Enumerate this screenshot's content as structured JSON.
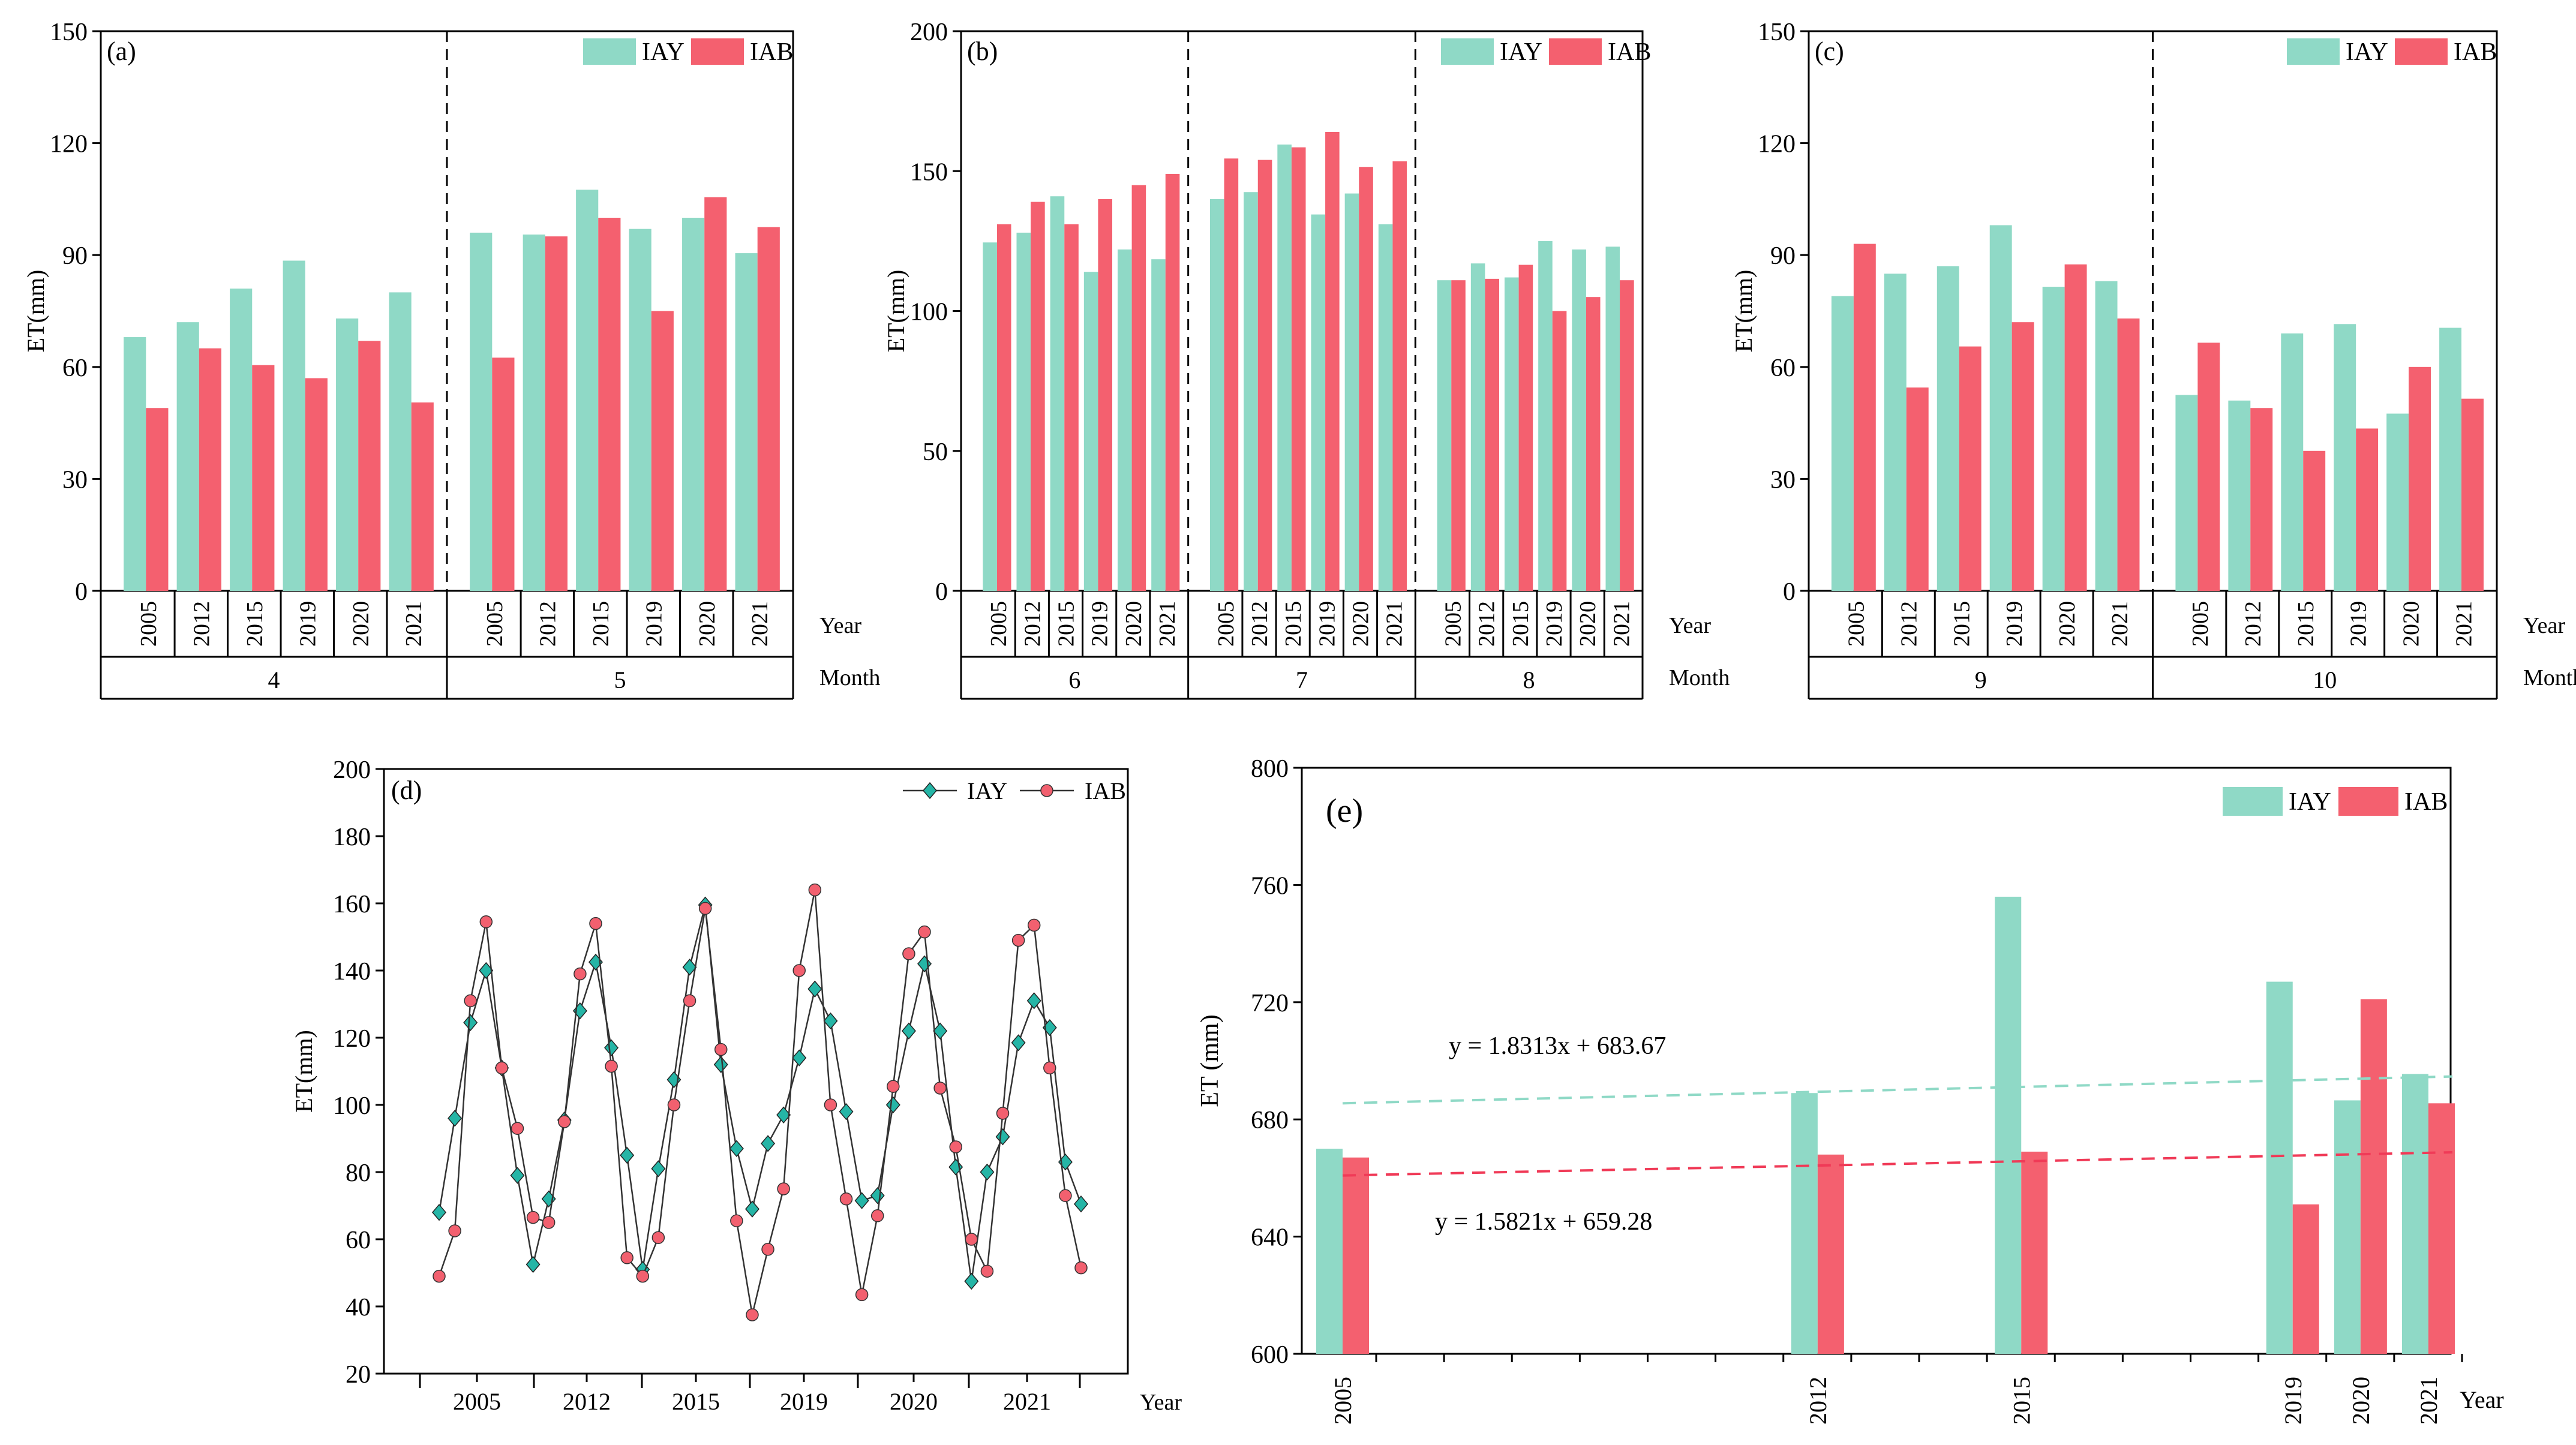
{
  "colors": {
    "iay": "#8fd9c6",
    "iab": "#f4606f",
    "iay_line": "#25b5a6",
    "iab_marker": "#f2606f",
    "axis": "#000000",
    "trend_iay": "#8fd9c6",
    "trend_iab": "#f03a57"
  },
  "common": {
    "years": [
      "2005",
      "2012",
      "2015",
      "2019",
      "2020",
      "2021"
    ],
    "year_label": "Year",
    "month_label": "Month",
    "legend_iay": "IAY",
    "legend_iab": "IAB"
  },
  "chart_data": [
    {
      "panel": "(a)",
      "type": "bar",
      "ylabel": "ET(mm)",
      "ylim": [
        0,
        150
      ],
      "yticks": [
        0,
        30,
        60,
        90,
        120,
        150
      ],
      "groups": [
        {
          "month": "4",
          "IAY": [
            68,
            72,
            81,
            88.5,
            73,
            80
          ],
          "IAB": [
            49,
            65,
            60.5,
            57,
            67,
            50.5
          ]
        },
        {
          "month": "5",
          "IAY": [
            96,
            95.5,
            107.5,
            97,
            100,
            90.5
          ],
          "IAB": [
            62.5,
            95,
            100,
            75,
            105.5,
            97.5
          ]
        }
      ]
    },
    {
      "panel": "(b)",
      "type": "bar",
      "ylabel": "ET(mm)",
      "ylim": [
        0,
        200
      ],
      "yticks": [
        0,
        50,
        100,
        150,
        200
      ],
      "groups": [
        {
          "month": "6",
          "IAY": [
            124.5,
            128,
            141,
            114,
            122,
            118.5
          ],
          "IAB": [
            131,
            139,
            131,
            140,
            145,
            149
          ]
        },
        {
          "month": "7",
          "IAY": [
            140,
            142.5,
            159.5,
            134.5,
            142,
            131
          ],
          "IAB": [
            154.5,
            154,
            158.5,
            164,
            151.5,
            153.5
          ]
        },
        {
          "month": "8",
          "IAY": [
            111,
            117,
            112,
            125,
            122,
            123
          ],
          "IAB": [
            111,
            111.5,
            116.5,
            100,
            105,
            111
          ]
        }
      ]
    },
    {
      "panel": "(c)",
      "type": "bar",
      "ylabel": "ET(mm)",
      "ylim": [
        0,
        150
      ],
      "yticks": [
        0,
        30,
        60,
        90,
        120,
        150
      ],
      "groups": [
        {
          "month": "9",
          "IAY": [
            79,
            85,
            87,
            98,
            81.5,
            83
          ],
          "IAB": [
            93,
            54.5,
            65.5,
            72,
            87.5,
            73
          ]
        },
        {
          "month": "10",
          "IAY": [
            52.5,
            51,
            69,
            71.5,
            47.5,
            70.5
          ],
          "IAB": [
            66.5,
            49,
            37.5,
            43.5,
            60,
            51.5
          ]
        }
      ]
    },
    {
      "panel": "(d)",
      "type": "line",
      "ylabel": "ET(mm)",
      "xlabel": "Year",
      "ylim": [
        20,
        200
      ],
      "yticks": [
        20,
        40,
        60,
        80,
        100,
        120,
        140,
        160,
        180,
        200
      ],
      "series": [
        {
          "name": "IAY",
          "values": [
            68,
            96,
            124.5,
            140,
            111,
            79,
            52.5,
            72,
            95.5,
            128,
            142.5,
            117,
            85,
            51,
            81,
            107.5,
            141,
            159.5,
            112,
            87,
            69,
            88.5,
            97,
            114,
            134.5,
            125,
            98,
            71.5,
            73,
            100,
            122,
            142,
            122,
            81.5,
            47.5,
            80,
            90.5,
            118.5,
            131,
            123,
            83,
            70.5
          ]
        },
        {
          "name": "IAB",
          "values": [
            49,
            62.5,
            131,
            154.5,
            111,
            93,
            66.5,
            65,
            95,
            139,
            154,
            111.5,
            54.5,
            49,
            60.5,
            100,
            131,
            158.5,
            116.5,
            65.5,
            37.5,
            57,
            75,
            140,
            164,
            100,
            72,
            43.5,
            67,
            105.5,
            145,
            151.5,
            105,
            87.5,
            60,
            50.5,
            97.5,
            149,
            153.5,
            111,
            73,
            51.5
          ]
        }
      ]
    },
    {
      "panel": "(e)",
      "type": "bar",
      "ylabel": "ET (mm)",
      "xlabel": "Year",
      "ylim": [
        600,
        800
      ],
      "yticks": [
        600,
        640,
        680,
        720,
        760,
        800
      ],
      "x": [
        2005,
        2012,
        2015,
        2019,
        2020,
        2021
      ],
      "series": [
        {
          "name": "IAY",
          "values": [
            670,
            689,
            756,
            727,
            686.5,
            695.5
          ]
        },
        {
          "name": "IAB",
          "values": [
            667,
            668,
            669,
            651,
            721,
            685.5
          ]
        }
      ],
      "trendlines": [
        {
          "series": "IAY",
          "equation": "y = 1.8313x + 683.67"
        },
        {
          "series": "IAB",
          "equation": "y = 1.5821x + 659.28"
        }
      ]
    }
  ]
}
